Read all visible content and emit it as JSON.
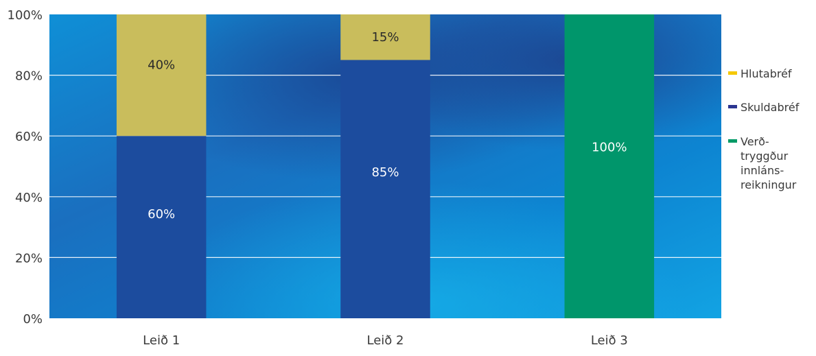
{
  "chart_data": {
    "type": "bar",
    "stacked": true,
    "categories": [
      "Leið 1",
      "Leið 2",
      "Leið 3"
    ],
    "series": [
      {
        "name": "Verð-tryggður innláns-reikningur",
        "values": [
          0,
          0,
          100
        ],
        "labels": [
          "",
          "",
          "100%"
        ],
        "color": "#00966b"
      },
      {
        "name": "Skuldabréf",
        "values": [
          60,
          85,
          0
        ],
        "labels": [
          "60%",
          "85%",
          ""
        ],
        "color": "#1c4c9e"
      },
      {
        "name": "Hlutabréf",
        "values": [
          40,
          15,
          0
        ],
        "labels": [
          "40%",
          "15%",
          ""
        ],
        "color": "#c9bd5c"
      }
    ],
    "legend": [
      {
        "name": "Hlutabréf",
        "lines": [
          "Hlutabréf"
        ],
        "color": "#f5c800"
      },
      {
        "name": "Skuldabréf",
        "lines": [
          "Skuldabréf"
        ],
        "color": "#2b3590"
      },
      {
        "name": "Verð-tryggður innláns-reikningur",
        "lines": [
          "Verð-",
          "tryggður",
          "innláns-",
          "reikningur"
        ],
        "color": "#009a66"
      }
    ],
    "y_ticks": [
      "0%",
      "20%",
      "40%",
      "60%",
      "80%",
      "100%"
    ],
    "ylim": [
      0,
      100
    ],
    "grid": true,
    "legend_position": "right",
    "title": "",
    "xlabel": "",
    "ylabel": ""
  }
}
